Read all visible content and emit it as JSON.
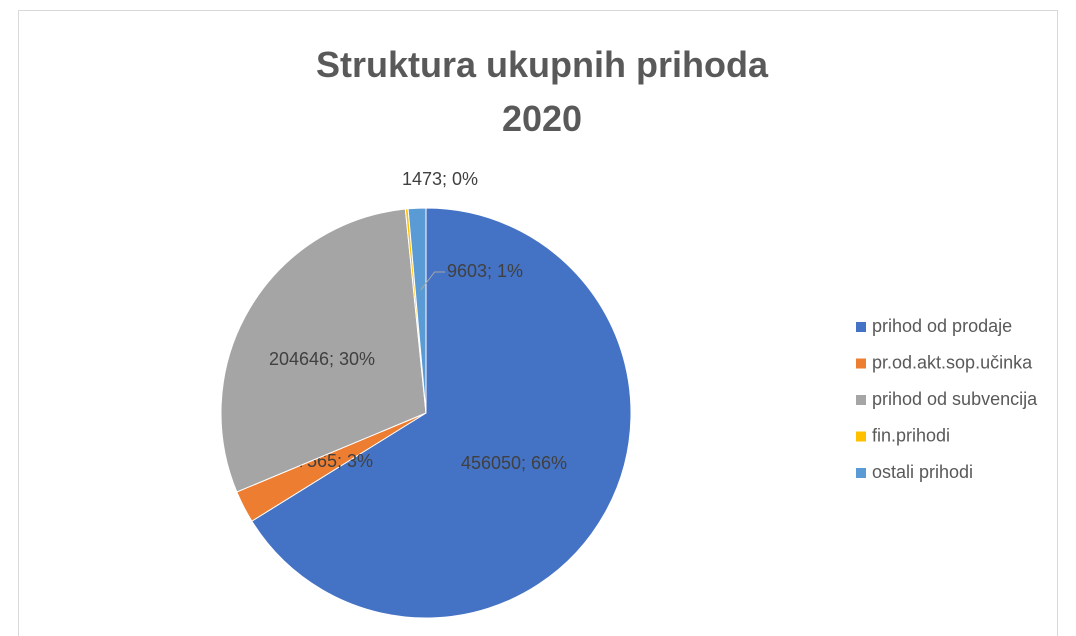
{
  "chart_data": {
    "type": "pie",
    "title": "Struktura ukupnih prihoda 2020",
    "categories": [
      "prihod od prodaje",
      "pr.od.akt.sop.učinka",
      "prihod od subvencija",
      "fin.prihodi",
      "ostali prihodi"
    ],
    "values": [
      456050,
      17565,
      204646,
      1473,
      9603
    ],
    "value_labels": [
      "456050; 66%",
      "17565; 3%",
      "204646; 30%",
      "1473; 0%",
      "9603; 1%"
    ],
    "colors": [
      "#4472c4",
      "#ed7d31",
      "#a5a5a5",
      "#ffc000",
      "#5b9bd5"
    ],
    "legend": "right"
  }
}
